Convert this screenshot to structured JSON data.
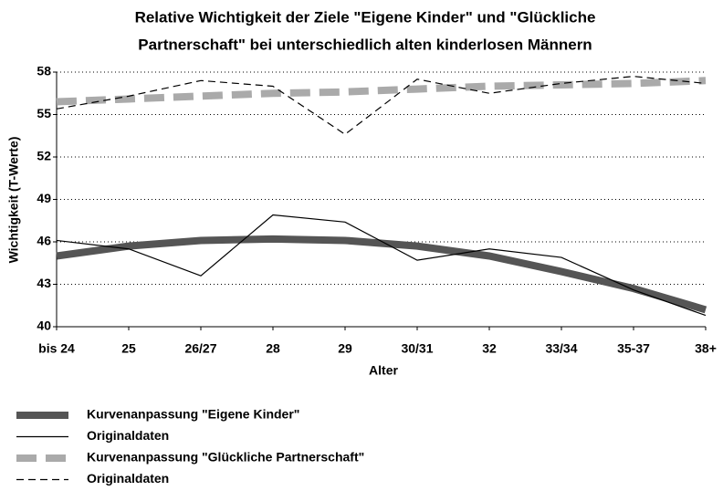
{
  "chart_data": {
    "type": "line",
    "title": [
      "Relative Wichtigkeit der Ziele \"Eigene Kinder\" und \"Glückliche",
      "Partnerschaft\" bei unterschiedlich alten kinderlosen Männern"
    ],
    "xlabel": "Alter",
    "ylabel": "Wichtigkeit (T-Werte)",
    "categories": [
      "bis 24",
      "25",
      "26/27",
      "28",
      "29",
      "30/31",
      "32",
      "33/34",
      "35-37",
      "38+"
    ],
    "ylim": [
      40,
      58
    ],
    "yticks": [
      40,
      43,
      46,
      49,
      52,
      55,
      58
    ],
    "grid": true,
    "legend": "bottom",
    "series": [
      {
        "name": "Kurvenanpassung \"Eigene Kinder\"",
        "color": "#555555",
        "width": 8,
        "dash": "none",
        "values": [
          45.0,
          45.7,
          46.1,
          46.2,
          46.1,
          45.7,
          45.0,
          43.9,
          42.7,
          41.2
        ]
      },
      {
        "name": "Originaldaten",
        "color": "#000000",
        "width": 1.2,
        "dash": "none",
        "values": [
          46.1,
          45.5,
          43.6,
          47.9,
          47.4,
          44.7,
          45.5,
          44.9,
          42.6,
          40.8
        ]
      },
      {
        "name": "Kurvenanpassung \"Glückliche Partnerschaft\"",
        "color": "#aaaaaa",
        "width": 8,
        "dash": "22 10",
        "values": [
          55.9,
          56.1,
          56.3,
          56.5,
          56.6,
          56.8,
          57.0,
          57.1,
          57.2,
          57.4
        ]
      },
      {
        "name": "Originaldaten",
        "color": "#000000",
        "width": 1.2,
        "dash": "8 5",
        "values": [
          55.4,
          56.3,
          57.4,
          57.0,
          53.6,
          57.5,
          56.5,
          57.2,
          57.7,
          57.2
        ]
      }
    ]
  }
}
